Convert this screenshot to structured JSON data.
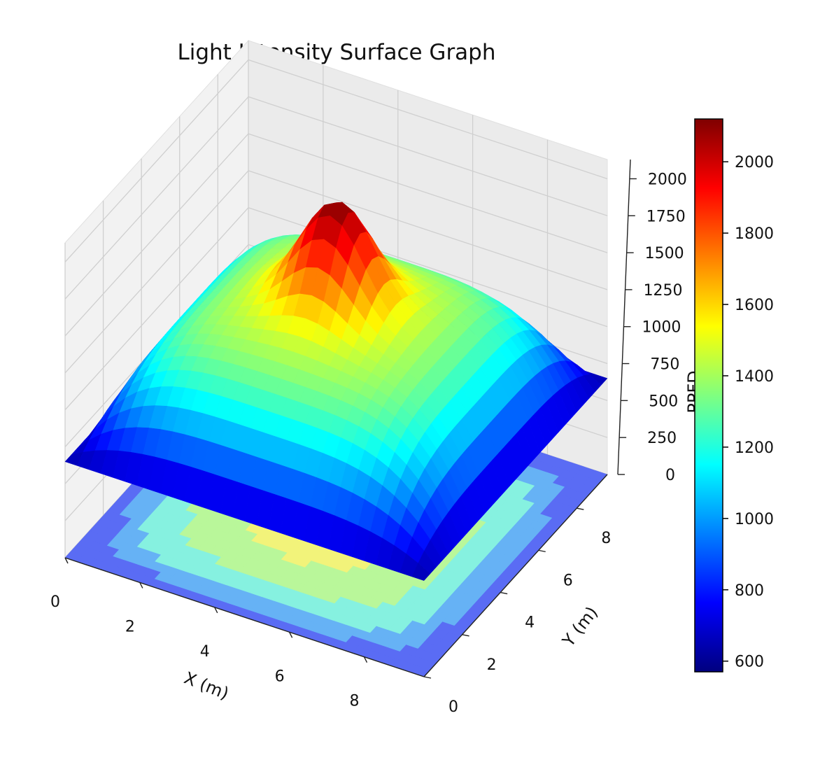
{
  "chart_data": {
    "type": "surface3d",
    "title": "Light Intensity Surface Graph",
    "xlabel": "X (m)",
    "ylabel": "Y (m)",
    "zlabel": "PPFD",
    "xlim": [
      0,
      9.6
    ],
    "ylim": [
      0,
      9.6
    ],
    "zlim": [
      0,
      2130
    ],
    "x_ticks": [
      0,
      2,
      4,
      6,
      8
    ],
    "y_ticks": [
      0,
      2,
      4,
      6,
      8
    ],
    "z_ticks": [
      0,
      250,
      500,
      750,
      1000,
      1250,
      1500,
      1750,
      2000
    ],
    "grid": true,
    "colormap": "jet",
    "colorbar": {
      "min": 570,
      "max": 2120,
      "ticks": [
        600,
        800,
        1000,
        1200,
        1400,
        1600,
        1800,
        2000
      ]
    },
    "surface_model": {
      "grid_points": 30,
      "center": [
        4.8,
        4.8
      ],
      "base_level": 1420,
      "edge_level": 650,
      "peak_height": 700,
      "peak_width": 0.9
    },
    "projected_contour": true
  }
}
